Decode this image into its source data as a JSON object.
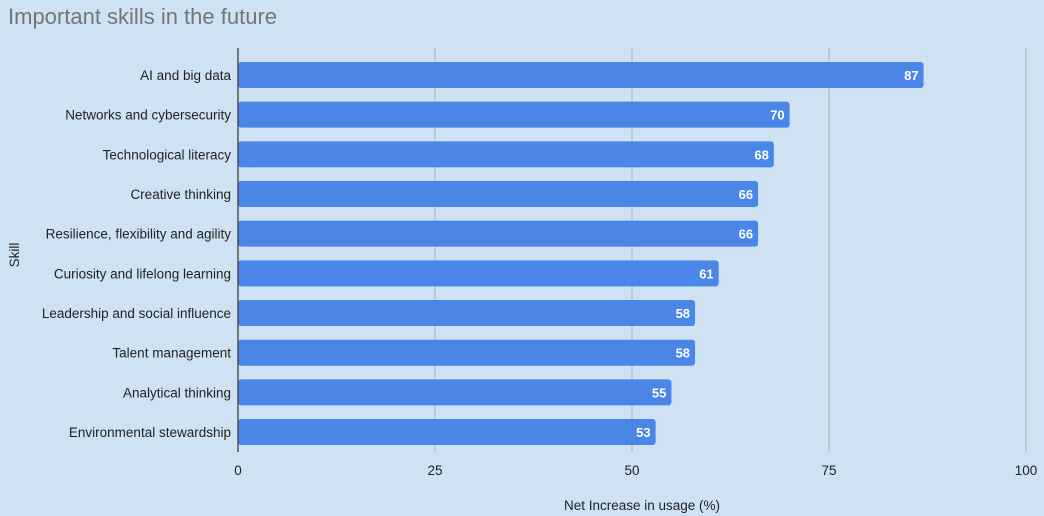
{
  "chart_data": {
    "type": "bar",
    "orientation": "horizontal",
    "title": "Important skills in the future",
    "xlabel": "Net Increase in usage (%)",
    "ylabel": "Skill",
    "categories": [
      "AI and big data",
      "Networks and cybersecurity",
      "Technological literacy",
      "Creative thinking",
      "Resilience, flexibility and agility",
      "Curiosity and lifelong learning",
      "Leadership and social influence",
      "Talent management",
      "Analytical thinking",
      "Environmental stewardship"
    ],
    "values": [
      87,
      70,
      68,
      66,
      66,
      61,
      58,
      58,
      55,
      53
    ],
    "xlim": [
      0,
      100
    ],
    "xticks": [
      0,
      25,
      50,
      75,
      100
    ],
    "xtick_labels": [
      "0",
      "25",
      "50",
      "75",
      "100"
    ],
    "grid": true,
    "legend": "none",
    "colors": {
      "bar": "#4a86e8",
      "background": "#cfe2f3",
      "grid": "#a7b4bf",
      "axis": "#333333",
      "title": "#757575"
    }
  }
}
